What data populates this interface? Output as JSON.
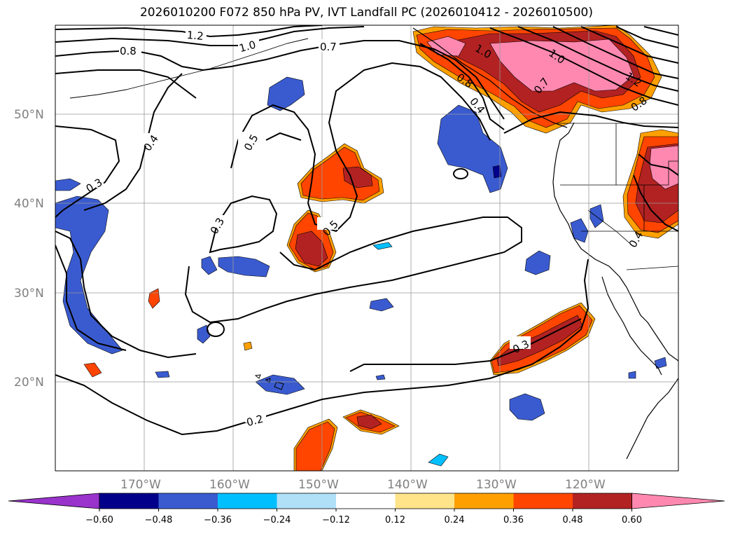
{
  "title": "2026010200 F072 850 hPa PV, IVT Landfall PC (2026010412 - 2026010500)",
  "map": {
    "lat_labels": [
      "50°N",
      "40°N",
      "30°N",
      "20°N"
    ],
    "lon_labels": [
      "170°W",
      "160°W",
      "150°W",
      "140°W",
      "130°W",
      "120°W"
    ],
    "grid": true
  },
  "contour_labels": [
    "1.2",
    "1.0",
    "0.8",
    "0.7",
    "0.4",
    "0.3",
    "0.5",
    "0.3",
    "0.5",
    "0.2",
    "0.3",
    "1.0",
    "0.8",
    "1.0",
    "0.7",
    "0.4",
    "1.2",
    "0.8",
    "0.4"
  ],
  "colorbar": {
    "ticks": [
      "−0.60",
      "−0.48",
      "−0.36",
      "−0.24",
      "−0.12",
      "0.12",
      "0.24",
      "0.36",
      "0.48",
      "0.60"
    ],
    "colors": [
      "#9933cc",
      "#00008b",
      "#3a5bd0",
      "#00bfff",
      "#b0e0f8",
      "#ffffff",
      "#ffe48a",
      "#ffa000",
      "#ff4500",
      "#b22222",
      "#ff88b0"
    ]
  }
}
